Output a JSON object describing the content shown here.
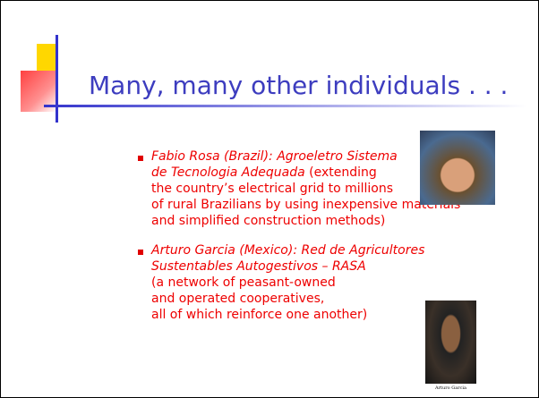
{
  "slide": {
    "title": "Many, many other individuals . . .",
    "bullets": [
      {
        "name_lines": [
          "Fabio Rosa (Brazil):  Agroeletro Sistema",
          "de Tecnologia Adequada"
        ],
        "description_lines": [
          "(extending",
          "the country’s electrical grid to millions",
          "of rural Brazilians by using inexpensive materials",
          "and simplified construction methods)"
        ]
      },
      {
        "name_lines": [
          "Arturo Garcia (Mexico):  Red de Agricultores",
          "Sustentables Autogestivos – RASA"
        ],
        "description_lines": [
          "(a network of peasant-owned",
          "and operated cooperatives,",
          "all of which reinforce one another)"
        ],
        "photo_caption": "Arturo Garcia"
      }
    ]
  }
}
